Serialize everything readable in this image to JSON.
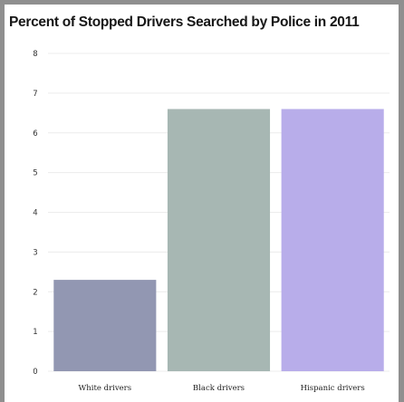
{
  "chart_data": {
    "type": "bar",
    "title": "Percent of Stopped Drivers Searched by Police in 2011",
    "categories": [
      "White drivers",
      "Black drivers",
      "Hispanic drivers"
    ],
    "values": [
      2.3,
      6.6,
      6.6
    ],
    "bar_colors": [
      "#9297b2",
      "#a7b7b3",
      "#b8adea"
    ],
    "xlabel": "",
    "ylabel": "",
    "ylim": [
      0,
      8
    ],
    "yticks": [
      "0",
      "1",
      "2",
      "3",
      "4",
      "5",
      "6",
      "7",
      "8"
    ],
    "grid": true,
    "legend": "none"
  }
}
